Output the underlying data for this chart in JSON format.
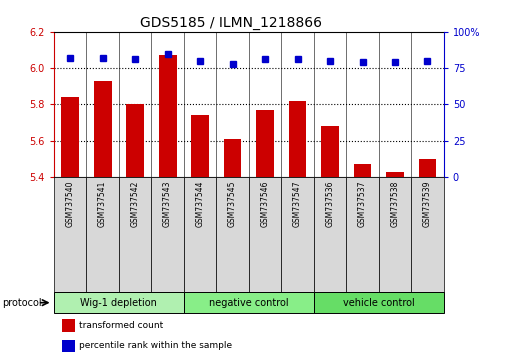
{
  "title": "GDS5185 / ILMN_1218866",
  "samples": [
    "GSM737540",
    "GSM737541",
    "GSM737542",
    "GSM737543",
    "GSM737544",
    "GSM737545",
    "GSM737546",
    "GSM737547",
    "GSM737536",
    "GSM737537",
    "GSM737538",
    "GSM737539"
  ],
  "bar_values": [
    5.84,
    5.93,
    5.8,
    6.07,
    5.74,
    5.61,
    5.77,
    5.82,
    5.68,
    5.47,
    5.43,
    5.5
  ],
  "dot_values": [
    82,
    82,
    81,
    85,
    80,
    78,
    81,
    81,
    80,
    79,
    79,
    80
  ],
  "ylim_left": [
    5.4,
    6.2
  ],
  "ylim_right": [
    0,
    100
  ],
  "yticks_left": [
    5.4,
    5.6,
    5.8,
    6.0,
    6.2
  ],
  "yticks_right": [
    0,
    25,
    50,
    75,
    100
  ],
  "ytick_right_labels": [
    "0",
    "25",
    "50",
    "75",
    "100%"
  ],
  "groups": [
    {
      "label": "Wig-1 depletion",
      "start": 0,
      "end": 4
    },
    {
      "label": "negative control",
      "start": 4,
      "end": 8
    },
    {
      "label": "vehicle control",
      "start": 8,
      "end": 12
    }
  ],
  "group_colors": [
    "#b0f0b0",
    "#88ee88",
    "#66dd66"
  ],
  "bar_color": "#cc0000",
  "dot_color": "#0000cc",
  "bar_bottom": 5.4,
  "protocol_label": "protocol",
  "legend_bar_label": "transformed count",
  "legend_dot_label": "percentile rank within the sample",
  "tick_color_left": "#cc0000",
  "tick_color_right": "#0000cc",
  "sample_bg": "#d8d8d8",
  "grid_dotted_ticks": [
    5.6,
    5.8,
    6.0
  ]
}
